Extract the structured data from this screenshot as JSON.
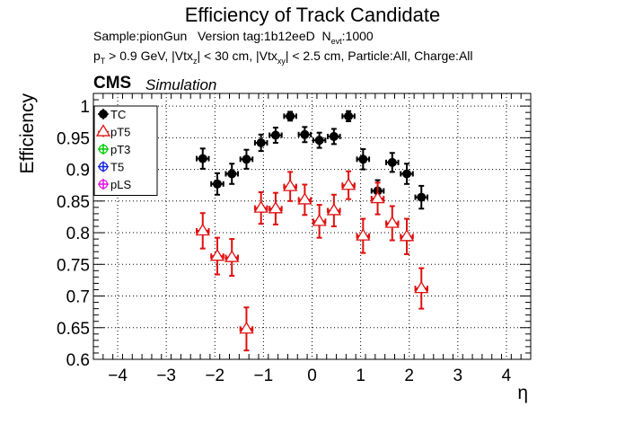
{
  "header": {
    "title": "Efficiency of Track Candidate",
    "sample_label": "Sample:pionGun",
    "version_label": "Version tag:1b12eeD",
    "nevt_main": "N",
    "nevt_sub": "evt",
    "nevt_value": ":1000",
    "pt_main": "p",
    "pt_sub": "T",
    "pt_rest": " > 0.9 GeV, |Vtx",
    "vtxz_sub": "z",
    "vtx_rest": "| < 30 cm, |Vtx",
    "vtxxy_sub": "xy",
    "cut_rest": "| < 2.5 cm, Particle:All, Charge:All",
    "cms": "CMS",
    "simulation": "Simulation"
  },
  "chart_data": {
    "type": "scatter",
    "xlabel": "η",
    "ylabel": "Efficiency",
    "xlim": [
      -4.5,
      4.5
    ],
    "ylim": [
      0.6,
      1.02
    ],
    "x_ticks": [
      -4,
      -3,
      -2,
      -1,
      0,
      1,
      2,
      3,
      4
    ],
    "x_tick_labels": [
      "−4",
      "−3",
      "−2",
      "−1",
      "0",
      "1",
      "2",
      "3",
      "4"
    ],
    "y_ticks": [
      0.6,
      0.65,
      0.7,
      0.75,
      0.8,
      0.85,
      0.9,
      0.95,
      1.0
    ],
    "y_tick_labels": [
      "0.6",
      "0.65",
      "0.7",
      "0.75",
      "0.8",
      "0.85",
      "0.9",
      "0.95",
      "1"
    ],
    "grid": true,
    "legend_position": "top-left",
    "x_bin_halfwidth": 0.125,
    "series": [
      {
        "name": "TC",
        "color": "#000000",
        "marker": "filled-circle",
        "x": [
          -2.25,
          -1.95,
          -1.65,
          -1.35,
          -1.05,
          -0.75,
          -0.45,
          -0.15,
          0.15,
          0.45,
          0.75,
          1.05,
          1.35,
          1.65,
          1.95,
          2.25
        ],
        "y": [
          0.917,
          0.877,
          0.893,
          0.916,
          0.942,
          0.954,
          0.984,
          0.955,
          0.946,
          0.952,
          0.984,
          0.916,
          0.866,
          0.911,
          0.893,
          0.856
        ],
        "err": [
          0.016,
          0.017,
          0.016,
          0.015,
          0.013,
          0.012,
          0.007,
          0.012,
          0.012,
          0.012,
          0.008,
          0.016,
          0.017,
          0.015,
          0.016,
          0.018
        ]
      },
      {
        "name": "pT5",
        "color": "#e01010",
        "marker": "open-triangle",
        "x": [
          -2.25,
          -1.95,
          -1.65,
          -1.35,
          -1.05,
          -0.75,
          -0.45,
          -0.15,
          0.15,
          0.45,
          0.75,
          1.05,
          1.35,
          1.65,
          1.95,
          2.25
        ],
        "y": [
          0.803,
          0.763,
          0.761,
          0.648,
          0.839,
          0.838,
          0.873,
          0.852,
          0.818,
          0.835,
          0.875,
          0.795,
          0.854,
          0.815,
          0.794,
          0.712
        ],
        "err": [
          0.028,
          0.029,
          0.029,
          0.034,
          0.025,
          0.025,
          0.023,
          0.024,
          0.026,
          0.025,
          0.022,
          0.027,
          0.025,
          0.027,
          0.028,
          0.032
        ]
      },
      {
        "name": "pT3",
        "color": "#00cc00",
        "marker": "open-circle",
        "x": [],
        "y": [],
        "err": []
      },
      {
        "name": "T5",
        "color": "#1020e0",
        "marker": "open-circle",
        "x": [],
        "y": [],
        "err": []
      },
      {
        "name": "pLS",
        "color": "#e010e0",
        "marker": "open-circle",
        "x": [],
        "y": [],
        "err": []
      }
    ]
  }
}
